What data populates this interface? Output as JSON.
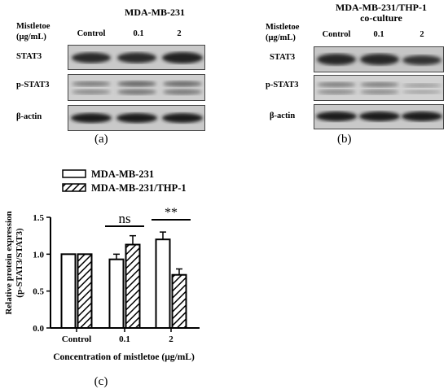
{
  "panel_a": {
    "title": "MDA-MB-231",
    "row_header": [
      "Mistletoe",
      "(μg/mL)"
    ],
    "lanes": [
      "Control",
      "0.1",
      "2"
    ],
    "rows": [
      "STAT3",
      "p-STAT3",
      "β-actin"
    ],
    "letter": "(a)"
  },
  "panel_b": {
    "title": [
      "MDA-MB-231/THP-1",
      "co-culture"
    ],
    "row_header": [
      "Mistletoe",
      "(μg/mL)"
    ],
    "lanes": [
      "Control",
      "0.1",
      "2"
    ],
    "rows": [
      "STAT3",
      "p-STAT3",
      "β-actin"
    ],
    "letter": "(b)"
  },
  "panel_c": {
    "letter": "(c)"
  },
  "chart_data": {
    "type": "bar",
    "categories": [
      "Control",
      "0.1",
      "2"
    ],
    "series": [
      {
        "name": "MDA-MB-231",
        "values": [
          1.0,
          0.93,
          1.2
        ],
        "errors": [
          0,
          0.07,
          0.1
        ],
        "pattern": "open"
      },
      {
        "name": "MDA-MB-231/THP-1",
        "values": [
          1.0,
          1.13,
          0.72
        ],
        "errors": [
          0,
          0.12,
          0.08
        ],
        "pattern": "hatched"
      }
    ],
    "ylabel": [
      "Relative protein expression",
      "(p-STAT3/STAT3)"
    ],
    "xlabel": "Concentration of mistletoe (μg/mL)",
    "ylim": [
      0,
      1.5
    ],
    "yticks": [
      "0.0",
      "0.5",
      "1.0",
      "1.5"
    ],
    "significance": [
      {
        "category": "0.1",
        "label": "ns"
      },
      {
        "category": "2",
        "label": "**"
      }
    ],
    "legend_position": "top"
  }
}
